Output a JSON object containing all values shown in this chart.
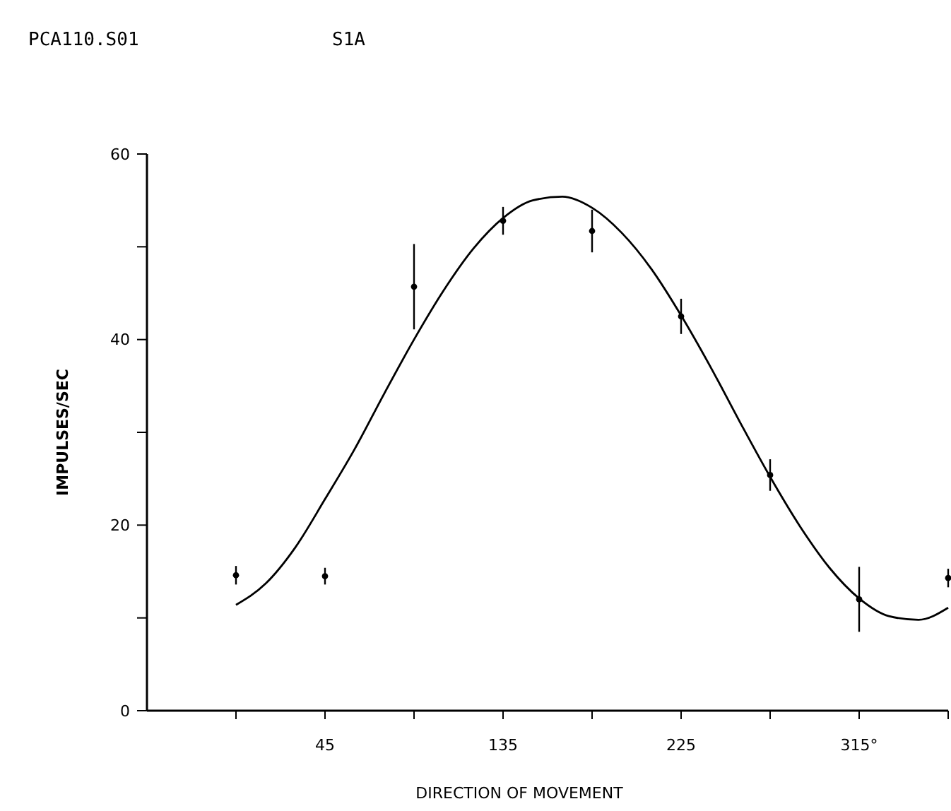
{
  "chart_data": {
    "type": "scatter",
    "title": "PCA110.S01",
    "subtitle": "S1A",
    "xlabel": "DIRECTION OF MOVEMENT",
    "ylabel": "IMPULSES/SEC",
    "x": [
      0,
      45,
      90,
      135,
      180,
      225,
      270,
      315,
      360
    ],
    "xlim": [
      -45,
      360
    ],
    "ylim": [
      0,
      60
    ],
    "xticks": [
      {
        "value": 0,
        "label": null
      },
      45,
      {
        "value": 90,
        "label": null
      },
      135,
      {
        "value": 180,
        "label": null
      },
      225,
      {
        "value": 270,
        "label": null
      },
      {
        "value": 315,
        "label": "315°"
      },
      {
        "value": 360,
        "label": null
      }
    ],
    "yticks": [
      0,
      {
        "value": 10,
        "label": null
      },
      20,
      {
        "value": 30,
        "label": null
      },
      40,
      {
        "value": 50,
        "label": null
      },
      60
    ],
    "grid": false,
    "series": [
      {
        "color": "#000000",
        "marker": "circle",
        "values": [
          14.6,
          14.5,
          45.7,
          52.8,
          51.7,
          42.5,
          25.4,
          12.0,
          14.3
        ],
        "errors": [
          1.0,
          0.9,
          4.6,
          1.5,
          2.3,
          1.9,
          1.7,
          3.5,
          1.0
        ]
      },
      {
        "type": "line",
        "color": "#000000",
        "line_style": "solid",
        "x": [
          0,
          15,
          30,
          45,
          60,
          75,
          90,
          105,
          120,
          135,
          150,
          165,
          180,
          195,
          210,
          225,
          240,
          255,
          270,
          285,
          300,
          315,
          330,
          345,
          360
        ],
        "values": [
          11.4,
          13.7,
          17.6,
          22.8,
          28.2,
          34.2,
          40.0,
          45.3,
          49.8,
          53.1,
          55.0,
          55.4,
          54.2,
          51.5,
          47.6,
          42.6,
          37.0,
          31.0,
          25.2,
          19.9,
          15.4,
          12.1,
          10.2,
          9.8,
          11.1
        ]
      }
    ]
  }
}
